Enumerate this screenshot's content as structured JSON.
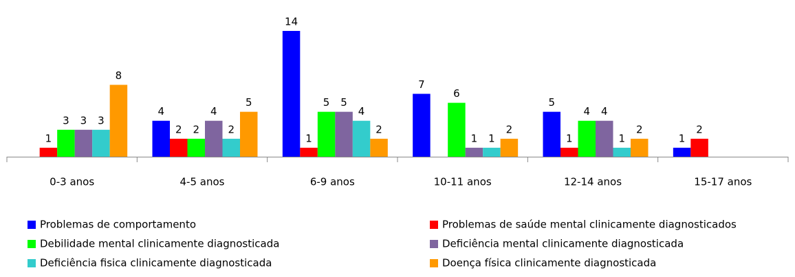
{
  "chart_data": {
    "type": "bar",
    "categories": [
      "0-3 anos",
      "4-5 anos",
      "6-9 anos",
      "10-11 anos",
      "12-14 anos",
      "15-17 anos"
    ],
    "series": [
      {
        "name": "Problemas de comportamento",
        "color": "#0000ff",
        "values": [
          null,
          4,
          14,
          7,
          5,
          1
        ]
      },
      {
        "name": "Problemas de saúde mental clinicamente diagnosticados",
        "color": "#ff0000",
        "values": [
          1,
          2,
          1,
          null,
          1,
          2
        ]
      },
      {
        "name": "Debilidade mental clinicamente diagnosticada",
        "color": "#00ff00",
        "values": [
          3,
          2,
          5,
          6,
          4,
          null
        ]
      },
      {
        "name": "Deficiência mental clinicamente diagnosticada",
        "color": "#7f659f",
        "values": [
          3,
          4,
          5,
          1,
          4,
          null
        ]
      },
      {
        "name": "Deficiência fisica clinicamente diagnosticada",
        "color": "#33cccc",
        "values": [
          3,
          2,
          4,
          1,
          1,
          null
        ]
      },
      {
        "name": "Doença física clinicamente diagnosticada",
        "color": "#ff9900",
        "values": [
          8,
          5,
          2,
          2,
          2,
          null
        ]
      }
    ]
  }
}
